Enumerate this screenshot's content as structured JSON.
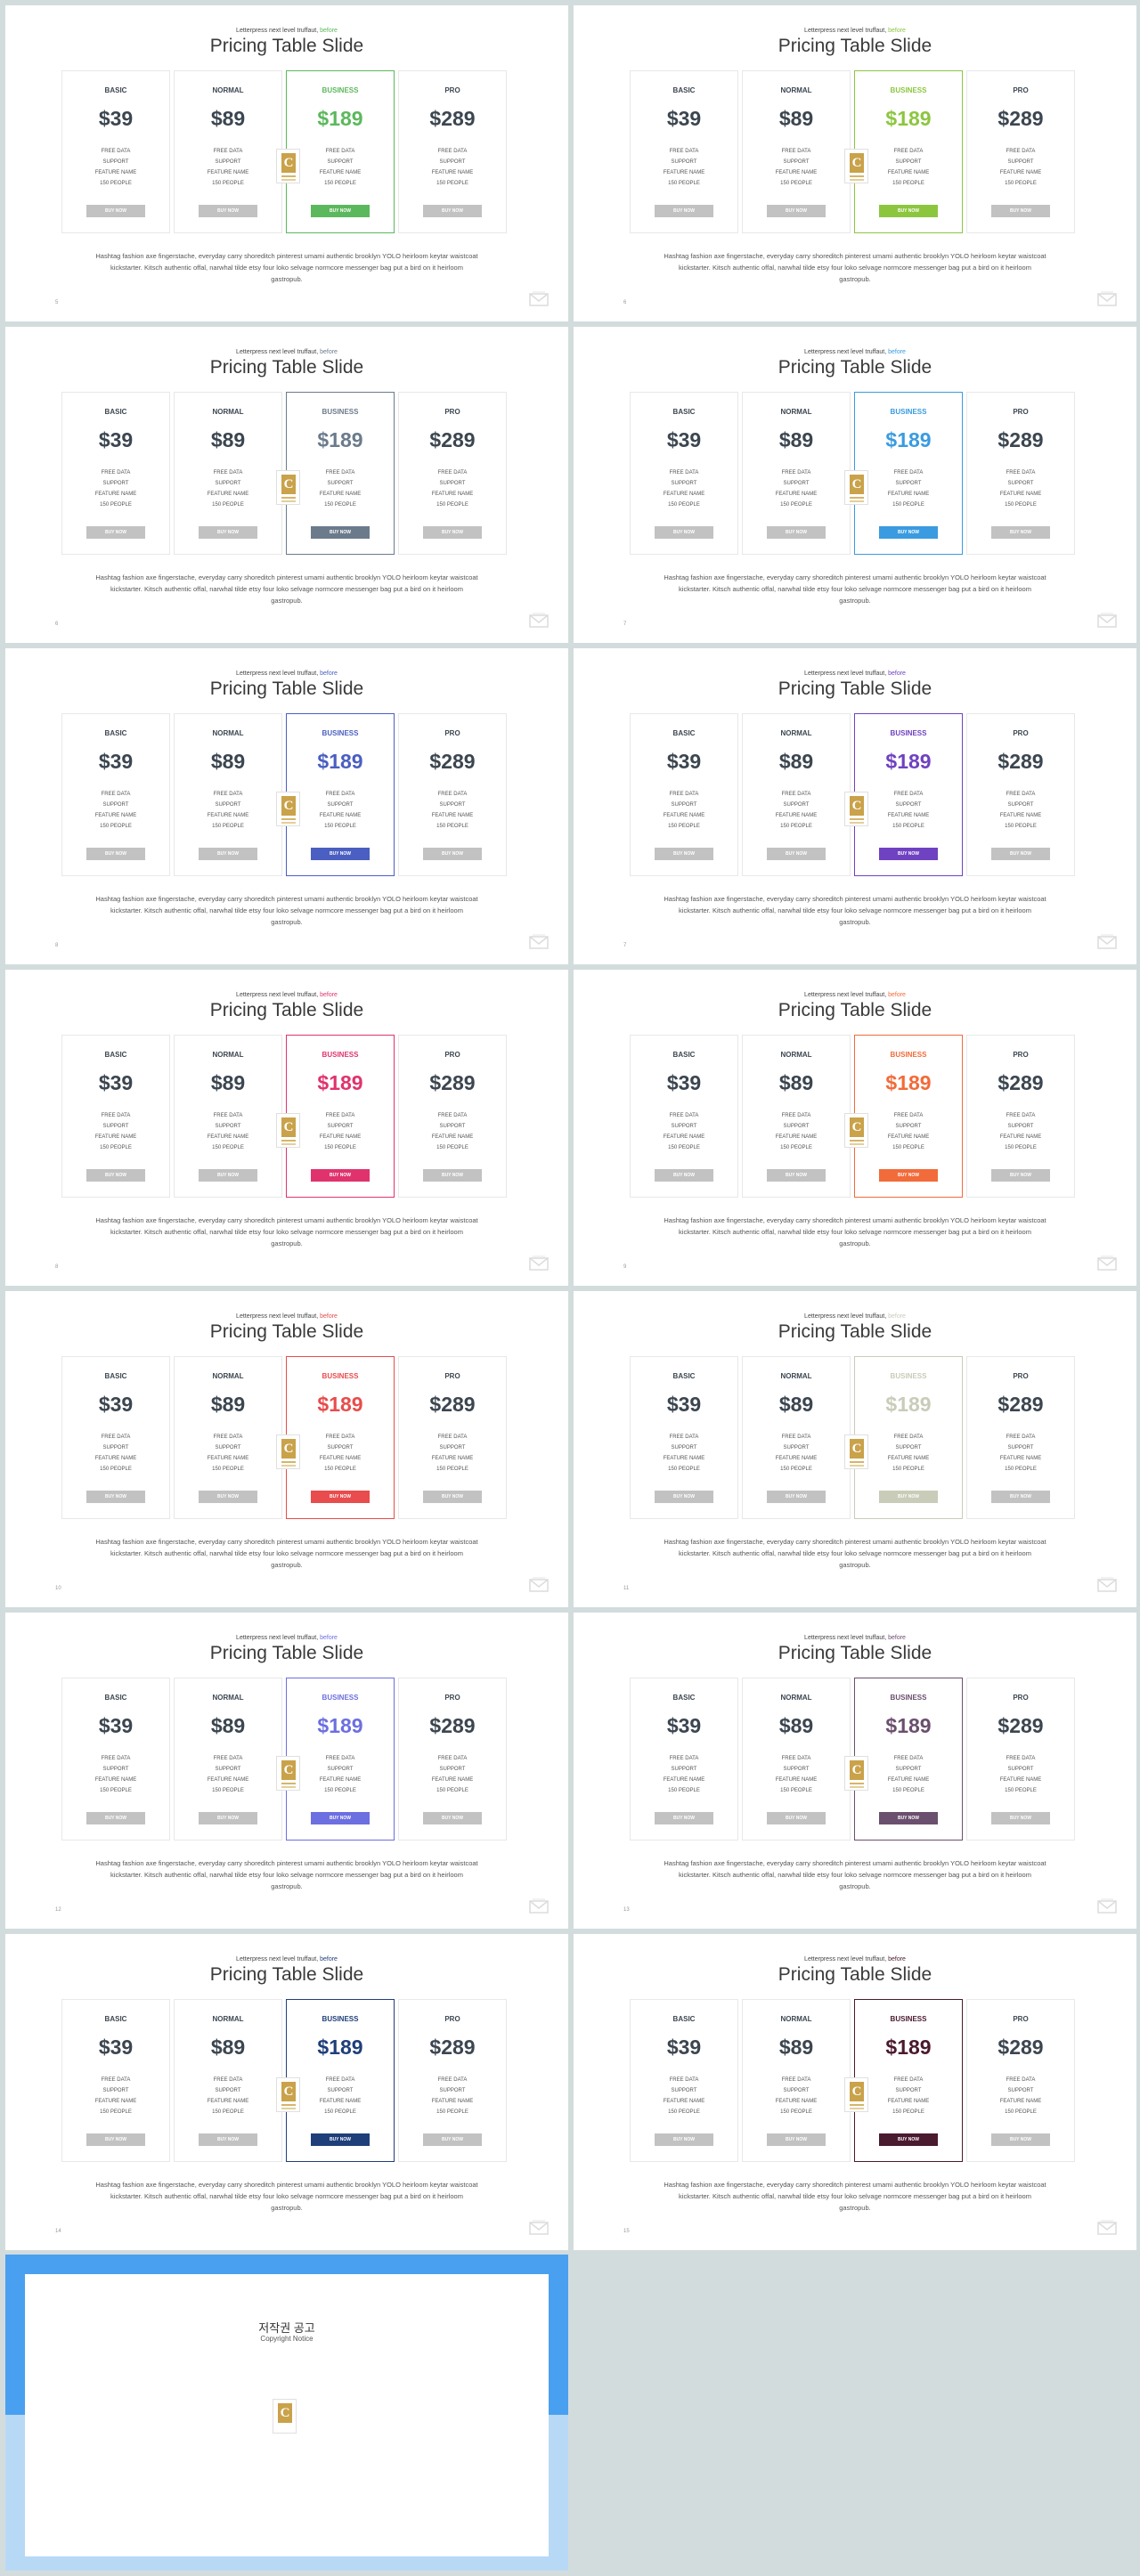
{
  "slides": [
    {
      "num": "5",
      "accent": "#5cb85c"
    },
    {
      "num": "6",
      "accent": "#8cc63f"
    },
    {
      "num": "6",
      "accent": "#6b7b8c"
    },
    {
      "num": "7",
      "accent": "#3a9be0"
    },
    {
      "num": "8",
      "accent": "#4a5fc1"
    },
    {
      "num": "7",
      "accent": "#6f42c1"
    },
    {
      "num": "8",
      "accent": "#e0336e"
    },
    {
      "num": "9",
      "accent": "#f26b3a"
    },
    {
      "num": "10",
      "accent": "#e84c4c"
    },
    {
      "num": "11",
      "accent": "#c8ccb8"
    },
    {
      "num": "12",
      "accent": "#6c6fe0"
    },
    {
      "num": "13",
      "accent": "#6b4f6e"
    },
    {
      "num": "14",
      "accent": "#1f3f7a"
    },
    {
      "num": "15",
      "accent": "#4a1a2e"
    }
  ],
  "slide_content": {
    "subtitle": "Letterpress next level truffaut,",
    "subtitle_tag": "before",
    "title": "Pricing Table Slide",
    "plans": [
      {
        "name": "BASIC",
        "price": "$39"
      },
      {
        "name": "NORMAL",
        "price": "$89"
      },
      {
        "name": "BUSINESS",
        "price": "$189"
      },
      {
        "name": "PRO",
        "price": "$289"
      }
    ],
    "features": [
      "FREE DATA",
      "SUPPORT",
      "FEATURE NAME",
      "150 PEOPLE"
    ],
    "buy_label": "BUY NOW",
    "badge_letter": "C",
    "description": "Hashtag fashion axe fingerstache, everyday carry shoreditch pinterest umami authentic brooklyn YOLO heirloom keytar waistcoat kickstarter. Kitsch authentic offal, narwhal tilde etsy four loko selvage normcore messenger bag put a bird on it heirloom gastropub."
  },
  "notice": {
    "title": "저작권 공고",
    "subtitle": "Copyright Notice",
    "paragraphs": [
      "",
      "",
      "",
      "",
      ""
    ]
  }
}
